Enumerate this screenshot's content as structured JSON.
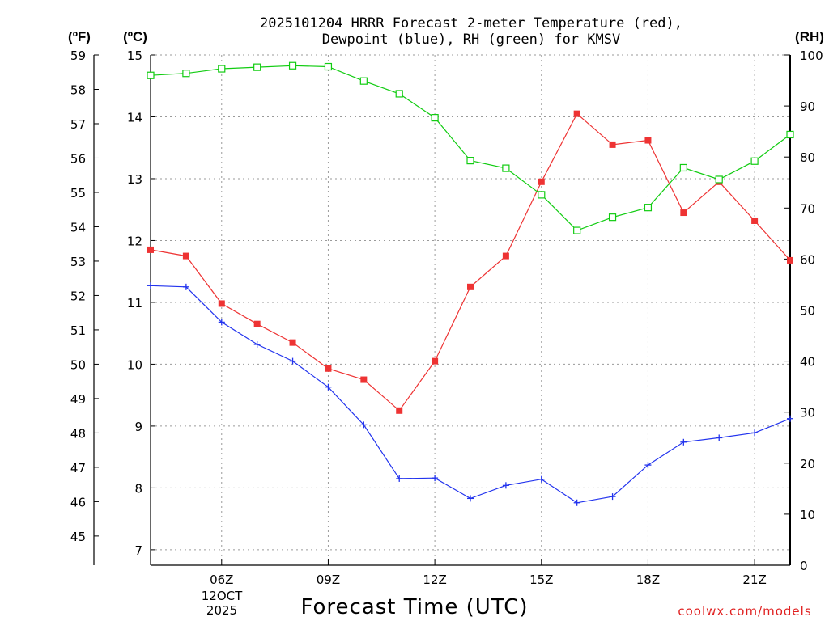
{
  "title_line1": "2025101204 HRRR Forecast 2-meter Temperature (red),",
  "title_line2": "Dewpoint (blue), RH (green) for KMSV",
  "units": {
    "fahrenheit": "(ºF)",
    "celsius": "(ºC)",
    "rh": "(RH)"
  },
  "xlabel": "Forecast Time (UTC)",
  "date_label": [
    "12OCT",
    "2025"
  ],
  "credit": "coolwx.com/models",
  "colors": {
    "temperature": "#ee3333",
    "dewpoint": "#2233ee",
    "rh": "#11cc11"
  },
  "chart_data": {
    "type": "line",
    "title": "2025101204 HRRR Forecast 2-meter Temperature (red), Dewpoint (blue), RH (green) for KMSV",
    "xlabel": "Forecast Time (UTC)",
    "x_hours_utc": [
      4,
      5,
      6,
      7,
      8,
      9,
      10,
      11,
      12,
      13,
      14,
      15,
      16,
      17,
      18,
      19,
      20,
      21,
      22
    ],
    "xlim": [
      4,
      22
    ],
    "x_ticks": [
      {
        "hour": 6,
        "label": "06Z"
      },
      {
        "hour": 9,
        "label": "09Z"
      },
      {
        "hour": 12,
        "label": "12Z"
      },
      {
        "hour": 15,
        "label": "15Z"
      },
      {
        "hour": 18,
        "label": "18Z"
      },
      {
        "hour": 21,
        "label": "21Z"
      }
    ],
    "celsius_axis": {
      "ylim": [
        6.75,
        15
      ],
      "ticks": [
        "7",
        "8",
        "9",
        "10",
        "11",
        "12",
        "13",
        "14",
        "15"
      ]
    },
    "fahrenheit_axis": {
      "ticks": [
        "45",
        "46",
        "47",
        "48",
        "49",
        "50",
        "51",
        "52",
        "53",
        "54",
        "55",
        "56",
        "57",
        "58",
        "59"
      ]
    },
    "rh_axis": {
      "ylim": [
        0,
        100
      ],
      "ticks": [
        "0",
        "10",
        "20",
        "30",
        "40",
        "50",
        "60",
        "70",
        "80",
        "90",
        "100"
      ]
    },
    "series": [
      {
        "name": "Temperature",
        "axis": "celsius",
        "marker": "filled-square",
        "values": [
          11.85,
          11.75,
          10.98,
          10.65,
          10.35,
          9.93,
          9.75,
          9.25,
          10.05,
          11.25,
          11.75,
          12.95,
          14.05,
          13.55,
          13.62,
          12.45,
          12.95,
          12.32,
          11.68
        ]
      },
      {
        "name": "Dewpoint",
        "axis": "celsius",
        "marker": "plus",
        "values": [
          11.27,
          11.25,
          10.68,
          10.32,
          10.05,
          9.63,
          9.02,
          8.15,
          8.16,
          7.83,
          8.04,
          8.14,
          7.76,
          7.86,
          8.37,
          8.74,
          8.81,
          8.89,
          9.12
        ]
      },
      {
        "name": "RH",
        "axis": "rh",
        "marker": "open-square",
        "values": [
          96.0,
          96.4,
          97.3,
          97.6,
          97.9,
          97.7,
          94.9,
          92.4,
          87.7,
          79.3,
          77.8,
          72.6,
          65.6,
          68.2,
          70.1,
          77.9,
          75.6,
          79.2,
          84.4
        ]
      }
    ]
  }
}
